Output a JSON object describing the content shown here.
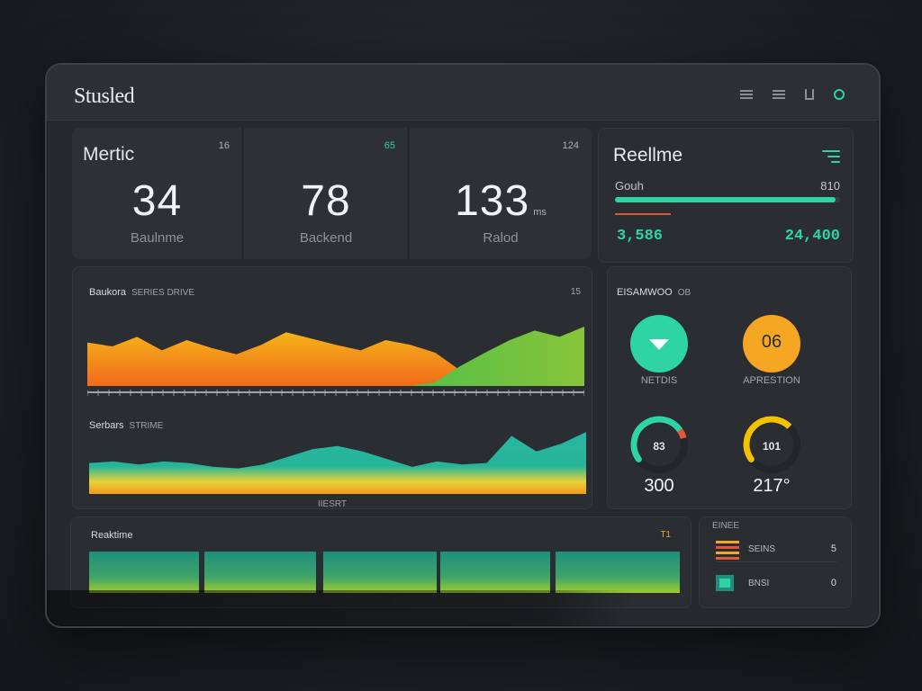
{
  "app": {
    "title": "Stusled"
  },
  "metrics": [
    {
      "label": "Mertic",
      "tag": "16",
      "value": "34",
      "unit": "",
      "sub": "Baulnme"
    },
    {
      "label": "",
      "tag": "65",
      "value": "78",
      "unit": "",
      "sub": "Backend"
    },
    {
      "label": "",
      "tag": "124",
      "value": "133",
      "unit": "ms",
      "sub": "Ralod"
    }
  ],
  "realtime": {
    "title": "Reellme",
    "row_label": "Gouh",
    "row_value": "810",
    "progress": 0.98,
    "value_left": "3,586",
    "value_right": "24,400"
  },
  "area_chart": {
    "title": "Baukora",
    "subtitle": "SERIES  DRIVE",
    "corner": "15",
    "lower_title": "Serbars",
    "lower_subtitle": "STRIME",
    "footer": "IIESRT"
  },
  "status": {
    "title": "EISAMWOO",
    "title_tag": "OB",
    "items": [
      {
        "caption": "NETDIS",
        "icon": "chevron-down-icon",
        "color": "#2fd4a4"
      },
      {
        "caption": "APRESTION",
        "value": "06",
        "color": "#f5a623"
      }
    ],
    "gauges": [
      {
        "inner": "83",
        "value": "300",
        "level": 0.72,
        "color": "#2fd4a4",
        "accent": "#e0573b"
      },
      {
        "inner": "101",
        "value": "217°",
        "level": 0.6,
        "color": "#f2c200",
        "accent": "#f2c200"
      }
    ]
  },
  "bottom": {
    "title": "Reaktime",
    "corner": "T1",
    "list_title": "EINEE",
    "list": [
      {
        "name": "SEINS",
        "count": "5",
        "icon": "bars-icon",
        "color": "#f5a623"
      },
      {
        "name": "BNSI",
        "count": "0",
        "icon": "square-icon",
        "color": "#2fd4a4"
      }
    ]
  },
  "chart_data": [
    {
      "type": "area",
      "title": "Baukora",
      "x": [
        0,
        1,
        2,
        3,
        4,
        5,
        6,
        7,
        8,
        9,
        10,
        11,
        12,
        13,
        14,
        15,
        16,
        17,
        18,
        19,
        20
      ],
      "series": [
        {
          "values": [
            55,
            50,
            62,
            45,
            58,
            48,
            40,
            52,
            68,
            60,
            52,
            45,
            58,
            52,
            42,
            20,
            12,
            10,
            8,
            6,
            5
          ]
        },
        {
          "values": [
            0,
            0,
            0,
            0,
            0,
            0,
            0,
            0,
            0,
            0,
            0,
            0,
            0,
            0,
            5,
            25,
            42,
            58,
            70,
            62,
            75
          ]
        }
      ],
      "ylim": [
        0,
        100
      ]
    },
    {
      "type": "area",
      "title": "Serbars",
      "x": [
        0,
        1,
        2,
        3,
        4,
        5,
        6,
        7,
        8,
        9,
        10,
        11,
        12,
        13,
        14,
        15,
        16,
        17,
        18,
        19,
        20
      ],
      "series": [
        {
          "values": [
            40,
            42,
            38,
            42,
            40,
            35,
            33,
            38,
            48,
            58,
            62,
            55,
            45,
            35,
            42,
            38,
            40,
            75,
            55,
            65,
            80
          ]
        }
      ],
      "ylim": [
        0,
        100
      ]
    },
    {
      "type": "bar",
      "title": "Reaktime",
      "categories": [
        "1",
        "2",
        "3",
        "4",
        "5"
      ],
      "values": [
        62,
        62,
        62,
        62,
        62
      ],
      "ylim": [
        0,
        100
      ]
    }
  ]
}
